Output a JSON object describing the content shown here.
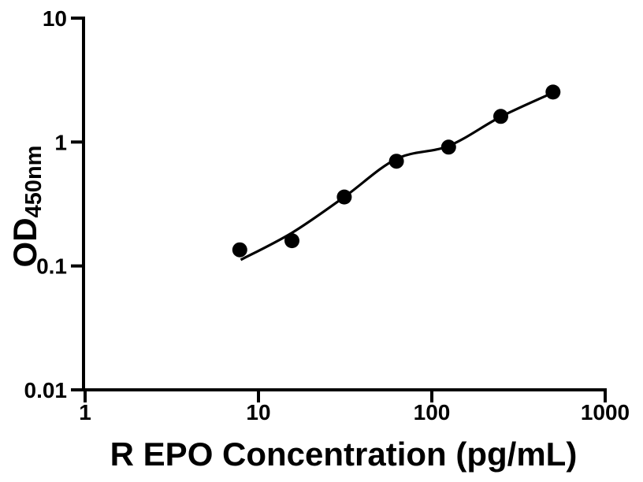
{
  "figure": {
    "background_color": "#ffffff",
    "ink_color": "#000000"
  },
  "chart_data": {
    "type": "scatter",
    "title": "",
    "xlabel": "R EPO Concentration (pg/mL)",
    "ylabel_main": "OD",
    "ylabel_sub": "450nm",
    "x_scale": "log10",
    "y_scale": "log10",
    "xlim": [
      1,
      1000
    ],
    "ylim": [
      0.01,
      10
    ],
    "grid": "off",
    "legend": "none",
    "x_ticks": [
      {
        "value": 1,
        "label": "1"
      },
      {
        "value": 10,
        "label": "10"
      },
      {
        "value": 100,
        "label": "100"
      },
      {
        "value": 1000,
        "label": "1000"
      }
    ],
    "y_ticks": [
      {
        "value": 10,
        "label": "10"
      },
      {
        "value": 1,
        "label": "1"
      },
      {
        "value": 0.1,
        "label": "0.1"
      },
      {
        "value": 0.01,
        "label": "0.01"
      }
    ],
    "series": [
      {
        "name": "standard-points",
        "type": "scatter",
        "marker": "filled-circle",
        "points": [
          [
            7.8,
            0.135
          ],
          [
            15.6,
            0.16
          ],
          [
            31.25,
            0.36
          ],
          [
            62.5,
            0.7
          ],
          [
            125,
            0.91
          ],
          [
            250,
            1.61
          ],
          [
            500,
            2.53
          ]
        ]
      },
      {
        "name": "fit-curve",
        "type": "line",
        "points": [
          [
            7.9,
            0.112
          ],
          [
            15.6,
            0.185
          ],
          [
            31.25,
            0.36
          ],
          [
            62.5,
            0.73
          ],
          [
            125,
            0.93
          ],
          [
            250,
            1.6
          ],
          [
            500,
            2.5
          ]
        ]
      }
    ]
  }
}
